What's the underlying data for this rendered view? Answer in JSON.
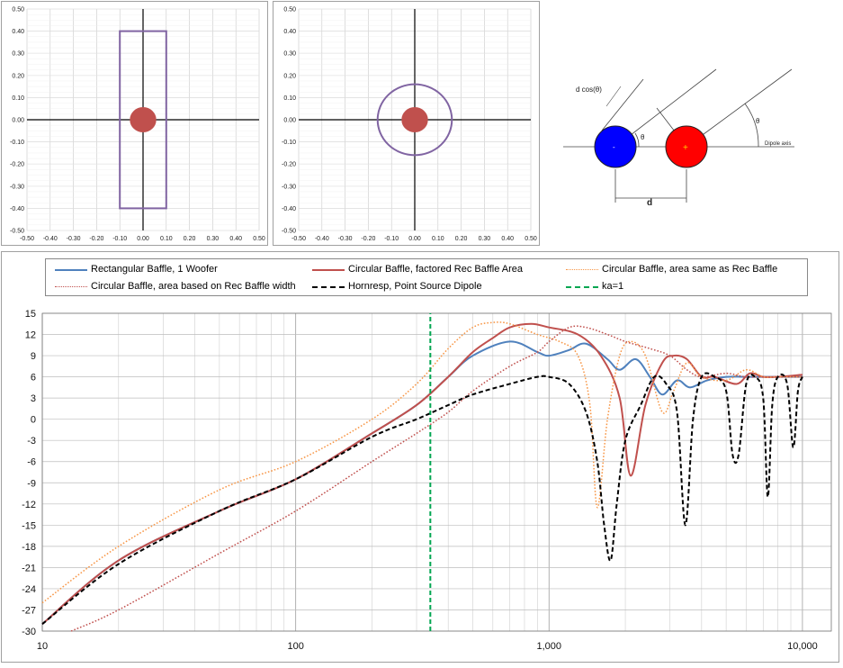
{
  "charts": {
    "baffle_rect": {
      "x_ticks": [
        "-0.50",
        "-0.40",
        "-0.30",
        "-0.20",
        "-0.10",
        "0.00",
        "0.10",
        "0.20",
        "0.30",
        "0.40",
        "0.50"
      ],
      "y_ticks": [
        "0.50",
        "0.40",
        "0.30",
        "0.20",
        "0.10",
        "0.00",
        "-0.10",
        "-0.20",
        "-0.30",
        "-0.40",
        "-0.50"
      ]
    },
    "baffle_circ": {
      "x_ticks": [
        "-0.50",
        "-0.40",
        "-0.30",
        "-0.20",
        "-0.10",
        "0.00",
        "0.10",
        "0.20",
        "0.30",
        "0.40",
        "0.50"
      ],
      "y_ticks": [
        "0.50",
        "0.40",
        "0.30",
        "0.20",
        "0.10",
        "0.00",
        "-0.10",
        "-0.20",
        "-0.30",
        "-0.40",
        "-0.50"
      ]
    },
    "dipole_diagram": {
      "label_dcos": "d cos(θ)",
      "label_theta1": "θ",
      "label_theta2": "θ",
      "label_axis": "Dipole axis",
      "label_d": "d"
    }
  },
  "chart_data": [
    {
      "type": "scatter",
      "xlim": [
        -0.5,
        0.5
      ],
      "ylim": [
        -0.5,
        0.5
      ],
      "grid": true,
      "shapes": [
        {
          "kind": "rectangle",
          "x": [
            -0.1,
            0.1
          ],
          "y": [
            -0.4,
            0.4
          ],
          "color": "#8064a2"
        },
        {
          "kind": "disc",
          "center": [
            0,
            0
          ],
          "radius": 0.055,
          "color": "#c0504d"
        }
      ]
    },
    {
      "type": "scatter",
      "xlim": [
        -0.5,
        0.5
      ],
      "ylim": [
        -0.5,
        0.5
      ],
      "grid": true,
      "shapes": [
        {
          "kind": "circle",
          "center": [
            0,
            0
          ],
          "radius": 0.16,
          "color": "#8064a2"
        },
        {
          "kind": "disc",
          "center": [
            0,
            0
          ],
          "radius": 0.055,
          "color": "#c0504d"
        }
      ]
    },
    {
      "type": "line",
      "xscale": "log",
      "xlim": [
        10,
        13000
      ],
      "ylim": [
        -30,
        15
      ],
      "x_ticks": [
        "10",
        "100",
        "1,000",
        "10,000"
      ],
      "y_ticks": [
        "15",
        "12",
        "9",
        "6",
        "3",
        "0",
        "-3",
        "-6",
        "-9",
        "-12",
        "-15",
        "-18",
        "-21",
        "-24",
        "-27",
        "-30"
      ],
      "grid": true,
      "legend": "top",
      "series": [
        {
          "name": "Rectangular Baffle, 1 Woofer",
          "color": "#4f81bd",
          "style": "solid",
          "points": [
            [
              10,
              -29
            ],
            [
              20,
              -20
            ],
            [
              50,
              -13
            ],
            [
              100,
              -8.5
            ],
            [
              200,
              -2
            ],
            [
              300,
              2
            ],
            [
              400,
              6
            ],
            [
              500,
              9
            ],
            [
              700,
              11
            ],
            [
              900,
              9.5
            ],
            [
              1000,
              9
            ],
            [
              1200,
              9.8
            ],
            [
              1400,
              10.7
            ],
            [
              1700,
              8.5
            ],
            [
              1900,
              7
            ],
            [
              2200,
              8.5
            ],
            [
              2500,
              6
            ],
            [
              2800,
              3.5
            ],
            [
              3200,
              5.5
            ],
            [
              3600,
              4.5
            ],
            [
              4200,
              5.5
            ],
            [
              5000,
              6
            ],
            [
              6000,
              6
            ],
            [
              8000,
              6
            ],
            [
              10000,
              6
            ]
          ]
        },
        {
          "name": "Circular Baffle, factored Rec Baffle Area",
          "color": "#c0504d",
          "style": "solid",
          "points": [
            [
              10,
              -29
            ],
            [
              20,
              -20
            ],
            [
              50,
              -13
            ],
            [
              100,
              -8.5
            ],
            [
              200,
              -2
            ],
            [
              300,
              2
            ],
            [
              400,
              6
            ],
            [
              500,
              9.5
            ],
            [
              600,
              11.5
            ],
            [
              700,
              13
            ],
            [
              850,
              13.5
            ],
            [
              1000,
              13
            ],
            [
              1300,
              12
            ],
            [
              1600,
              9
            ],
            [
              1900,
              3
            ],
            [
              2100,
              -8
            ],
            [
              2400,
              2
            ],
            [
              2800,
              8
            ],
            [
              3100,
              9
            ],
            [
              3500,
              8.5
            ],
            [
              4000,
              6
            ],
            [
              4500,
              6
            ],
            [
              5500,
              5
            ],
            [
              6200,
              6.5
            ],
            [
              7000,
              6
            ],
            [
              8000,
              6
            ],
            [
              10000,
              6.3
            ]
          ]
        },
        {
          "name": "Circular Baffle, area same as Rec Baffle",
          "color": "#f79646",
          "style": "dotted",
          "points": [
            [
              10,
              -26
            ],
            [
              20,
              -18
            ],
            [
              50,
              -10
            ],
            [
              100,
              -6
            ],
            [
              200,
              0
            ],
            [
              300,
              5
            ],
            [
              400,
              10
            ],
            [
              500,
              13
            ],
            [
              600,
              13.7
            ],
            [
              700,
              13.5
            ],
            [
              900,
              12
            ],
            [
              1100,
              11
            ],
            [
              1300,
              9
            ],
            [
              1450,
              2
            ],
            [
              1550,
              -12.5
            ],
            [
              1700,
              0
            ],
            [
              1900,
              9
            ],
            [
              2100,
              11
            ],
            [
              2400,
              9
            ],
            [
              2800,
              1
            ],
            [
              3100,
              4
            ],
            [
              3500,
              8
            ],
            [
              4000,
              6
            ],
            [
              5000,
              5.5
            ],
            [
              6000,
              7
            ],
            [
              7000,
              6
            ],
            [
              8000,
              6
            ],
            [
              10000,
              6
            ]
          ]
        },
        {
          "name": "Circular Baffle, area based on Rec Baffle width",
          "color": "#c0504d",
          "style": "dotted",
          "points": [
            [
              13,
              -30
            ],
            [
              20,
              -27
            ],
            [
              50,
              -19
            ],
            [
              100,
              -13
            ],
            [
              200,
              -6
            ],
            [
              300,
              -2
            ],
            [
              400,
              1
            ],
            [
              500,
              4
            ],
            [
              700,
              7.5
            ],
            [
              900,
              9.5
            ],
            [
              1000,
              11
            ],
            [
              1200,
              13
            ],
            [
              1400,
              13
            ],
            [
              1700,
              12
            ],
            [
              2000,
              11
            ],
            [
              2500,
              10
            ],
            [
              3000,
              9
            ],
            [
              3500,
              7
            ],
            [
              4000,
              6
            ],
            [
              5000,
              6.5
            ],
            [
              6000,
              6
            ],
            [
              8000,
              6
            ],
            [
              10000,
              6
            ]
          ]
        },
        {
          "name": "Hornresp, Point Source Dipole",
          "color": "#000000",
          "style": "dashed",
          "points": [
            [
              10,
              -29
            ],
            [
              20,
              -20.5
            ],
            [
              50,
              -13
            ],
            [
              100,
              -8.5
            ],
            [
              200,
              -2.5
            ],
            [
              300,
              0
            ],
            [
              400,
              2
            ],
            [
              500,
              3.5
            ],
            [
              700,
              5
            ],
            [
              900,
              6
            ],
            [
              1000,
              6
            ],
            [
              1200,
              5
            ],
            [
              1400,
              1
            ],
            [
              1550,
              -6
            ],
            [
              1650,
              -15
            ],
            [
              1750,
              -20
            ],
            [
              1850,
              -12
            ],
            [
              2000,
              -3
            ],
            [
              2300,
              2
            ],
            [
              2600,
              6
            ],
            [
              2900,
              5
            ],
            [
              3200,
              1
            ],
            [
              3450,
              -15
            ],
            [
              3700,
              0
            ],
            [
              4000,
              6
            ],
            [
              4500,
              6
            ],
            [
              5000,
              4
            ],
            [
              5300,
              -5
            ],
            [
              5600,
              -5
            ],
            [
              6000,
              5
            ],
            [
              6500,
              6
            ],
            [
              7000,
              3
            ],
            [
              7300,
              -11
            ],
            [
              7600,
              2
            ],
            [
              8000,
              6
            ],
            [
              8700,
              5
            ],
            [
              9200,
              -4
            ],
            [
              9600,
              4
            ],
            [
              10000,
              6
            ]
          ]
        },
        {
          "name": "ka=1",
          "color": "#00a651",
          "style": "dashed",
          "points": [
            [
              340,
              -30
            ],
            [
              340,
              15
            ]
          ]
        }
      ]
    }
  ]
}
